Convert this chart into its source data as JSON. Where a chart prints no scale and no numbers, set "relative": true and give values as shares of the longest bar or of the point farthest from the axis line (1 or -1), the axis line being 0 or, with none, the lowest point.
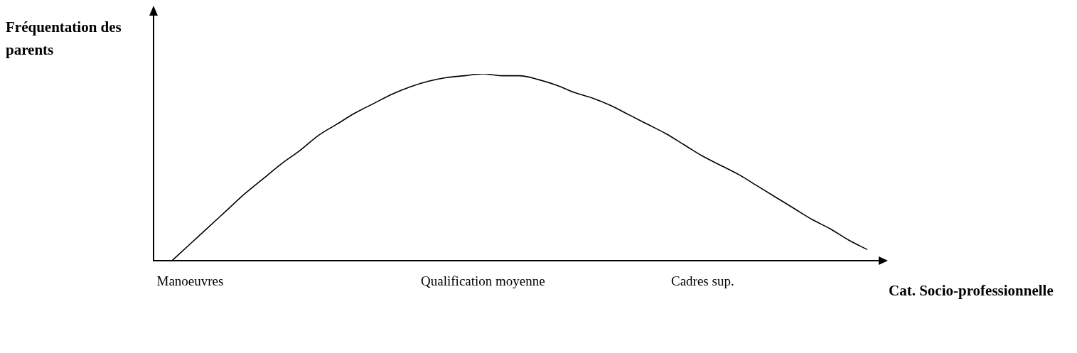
{
  "chart_data": {
    "type": "line",
    "relative": true,
    "xlabel": "Cat. Socio-professionnelle",
    "ylabel": "Fréquentation des parents",
    "marker": "none",
    "categories": [
      null,
      null,
      "Manoeuvres",
      null,
      null,
      null,
      null,
      null,
      null,
      null,
      null,
      null,
      null,
      null,
      null,
      null,
      null,
      null,
      "Qualification moyenne",
      null,
      null,
      null,
      null,
      null,
      null,
      null,
      null,
      null,
      null,
      null,
      "Cadres sup.",
      null,
      null,
      null,
      null,
      null,
      null,
      null,
      null,
      null
    ],
    "series": [
      {
        "color": "#000000",
        "values": [
          null,
          0,
          0.09,
          0.18,
          0.27,
          0.36,
          0.44,
          0.52,
          0.59,
          0.67,
          0.73,
          0.79,
          0.84,
          0.89,
          0.93,
          0.96,
          0.98,
          0.99,
          1,
          0.99,
          0.99,
          0.97,
          0.94,
          0.9,
          0.87,
          0.83,
          0.78,
          0.73,
          0.68,
          0.62,
          0.56,
          0.51,
          0.46,
          0.4,
          0.34,
          0.28,
          0.22,
          0.17,
          0.11,
          0.06
        ]
      }
    ]
  }
}
